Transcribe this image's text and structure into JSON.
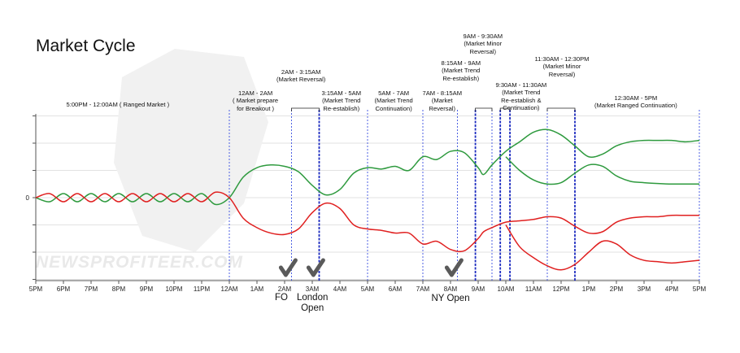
{
  "chart_data": {
    "type": "line",
    "title": "Market Cycle",
    "x_tick_labels": [
      "5PM",
      "6PM",
      "7PM",
      "8PM",
      "9PM",
      "10PM",
      "11PM",
      "12AM",
      "1AM",
      "2AM",
      "3AM",
      "4AM",
      "5AM",
      "6AM",
      "7AM",
      "8AM",
      "9AM",
      "10AM",
      "11AM",
      "12PM",
      "1PM",
      "2PM",
      "3PM",
      "4PM",
      "5PM"
    ],
    "y_tick_label": "0",
    "grid": "horizontal",
    "series": [
      {
        "name": "",
        "color": "#2e9a3e",
        "x": [
          0,
          0.5,
          1,
          1.5,
          2,
          2.5,
          3,
          3.5,
          4,
          4.5,
          5,
          5.5,
          6,
          6.5,
          7,
          7.5,
          8,
          8.5,
          9,
          9.5,
          10,
          10.5,
          11,
          11.5,
          12,
          12.5,
          13,
          13.5,
          14,
          14.5,
          15,
          15.5,
          16,
          16.2,
          16.5,
          17,
          17.5,
          18,
          18.5,
          19,
          19.5,
          20,
          20.5,
          21,
          21.5,
          22,
          22.5,
          23,
          23.5,
          24
        ],
        "y": [
          0,
          -0.15,
          0.15,
          -0.15,
          0.15,
          -0.15,
          0.15,
          -0.15,
          0.15,
          -0.15,
          0.15,
          -0.15,
          0.15,
          -0.25,
          0,
          0.75,
          1.1,
          1.2,
          1.15,
          0.95,
          0.45,
          0.1,
          0.3,
          0.9,
          1.1,
          1.05,
          1.15,
          1.0,
          1.5,
          1.4,
          1.7,
          1.65,
          1.1,
          0.85,
          1.2,
          1.7,
          2.05,
          2.4,
          2.5,
          2.3,
          1.9,
          1.5,
          1.6,
          1.9,
          2.05,
          2.1,
          2.1,
          2.1,
          2.05,
          2.1
        ]
      },
      {
        "name": "",
        "color": "#2e9a3e",
        "x": [
          17,
          17.5,
          18,
          18.5,
          19,
          19.5,
          20,
          20.5,
          21,
          21.5,
          22,
          22.5,
          23,
          23.5,
          24
        ],
        "y": [
          1.5,
          1.0,
          0.65,
          0.5,
          0.55,
          0.9,
          1.2,
          1.15,
          0.8,
          0.6,
          0.55,
          0.52,
          0.5,
          0.5,
          0.5
        ]
      },
      {
        "name": "",
        "color": "#e02020",
        "x": [
          0,
          0.5,
          1,
          1.5,
          2,
          2.5,
          3,
          3.5,
          4,
          4.5,
          5,
          5.5,
          6,
          6.5,
          7,
          7.5,
          8,
          8.5,
          9,
          9.5,
          10,
          10.5,
          11,
          11.5,
          12,
          12.5,
          13,
          13.5,
          14,
          14.5,
          15,
          15.5,
          16,
          16.2,
          16.5,
          17,
          17.5,
          18,
          18.5,
          19,
          19.5,
          20,
          20.5,
          21,
          21.5,
          22,
          22.5,
          23,
          23.5,
          24
        ],
        "y": [
          0,
          0.15,
          -0.15,
          0.15,
          -0.15,
          0.15,
          -0.15,
          0.15,
          -0.15,
          0.15,
          -0.15,
          0.15,
          -0.15,
          0.2,
          0,
          -0.75,
          -1.1,
          -1.3,
          -1.35,
          -1.15,
          -0.55,
          -0.2,
          -0.4,
          -1.0,
          -1.15,
          -1.2,
          -1.3,
          -1.3,
          -1.7,
          -1.6,
          -1.9,
          -1.95,
          -1.5,
          -1.25,
          -1.1,
          -0.9,
          -0.85,
          -0.8,
          -0.7,
          -0.75,
          -1.05,
          -1.3,
          -1.25,
          -0.9,
          -0.75,
          -0.7,
          -0.7,
          -0.65,
          -0.65,
          -0.65
        ]
      },
      {
        "name": "",
        "color": "#e02020",
        "x": [
          17,
          17.5,
          18,
          18.5,
          19,
          19.5,
          20,
          20.5,
          21,
          21.5,
          22,
          22.5,
          23,
          23.5,
          24
        ],
        "y": [
          -1.0,
          -1.8,
          -2.2,
          -2.5,
          -2.65,
          -2.45,
          -2.0,
          -1.6,
          -1.7,
          -2.1,
          -2.3,
          -2.35,
          -2.4,
          -2.35,
          -2.3
        ]
      }
    ],
    "annotations": [
      {
        "text": "5:00PM - 12:00AM ( Ranged Market )"
      },
      {
        "text": "12AM - 2AM\n( Market prepare\nfor Breakout )"
      },
      {
        "text": "2AM - 3:15AM\n(Market Reversal)"
      },
      {
        "text": "3:15AM - 5AM\n(Market Trend\nRe-establish)"
      },
      {
        "text": "5AM - 7AM\n(Market Trend\nContinuation)"
      },
      {
        "text": "7AM - 8:15AM\n(Market\nReversal)"
      },
      {
        "text": "8:15AM - 9AM\n(Market Trend\nRe-establish)"
      },
      {
        "text": "9AM - 9:30AM\n(Market Minor\nReversal)"
      },
      {
        "text": "9:30AM - 11:30AM\n(Market Trend\nRe-establish &\nContinuation)"
      },
      {
        "text": "11:30AM - 12:30PM\n(Market Minor\nReversal)"
      },
      {
        "text": "12:30AM - 5PM\n(Market Ranged Continuation)"
      }
    ],
    "events": [
      {
        "text": "FO"
      },
      {
        "text": "London\nOpen"
      },
      {
        "text": "NY Open"
      }
    ],
    "watermark": "NEWSPROFITEER.COM"
  }
}
